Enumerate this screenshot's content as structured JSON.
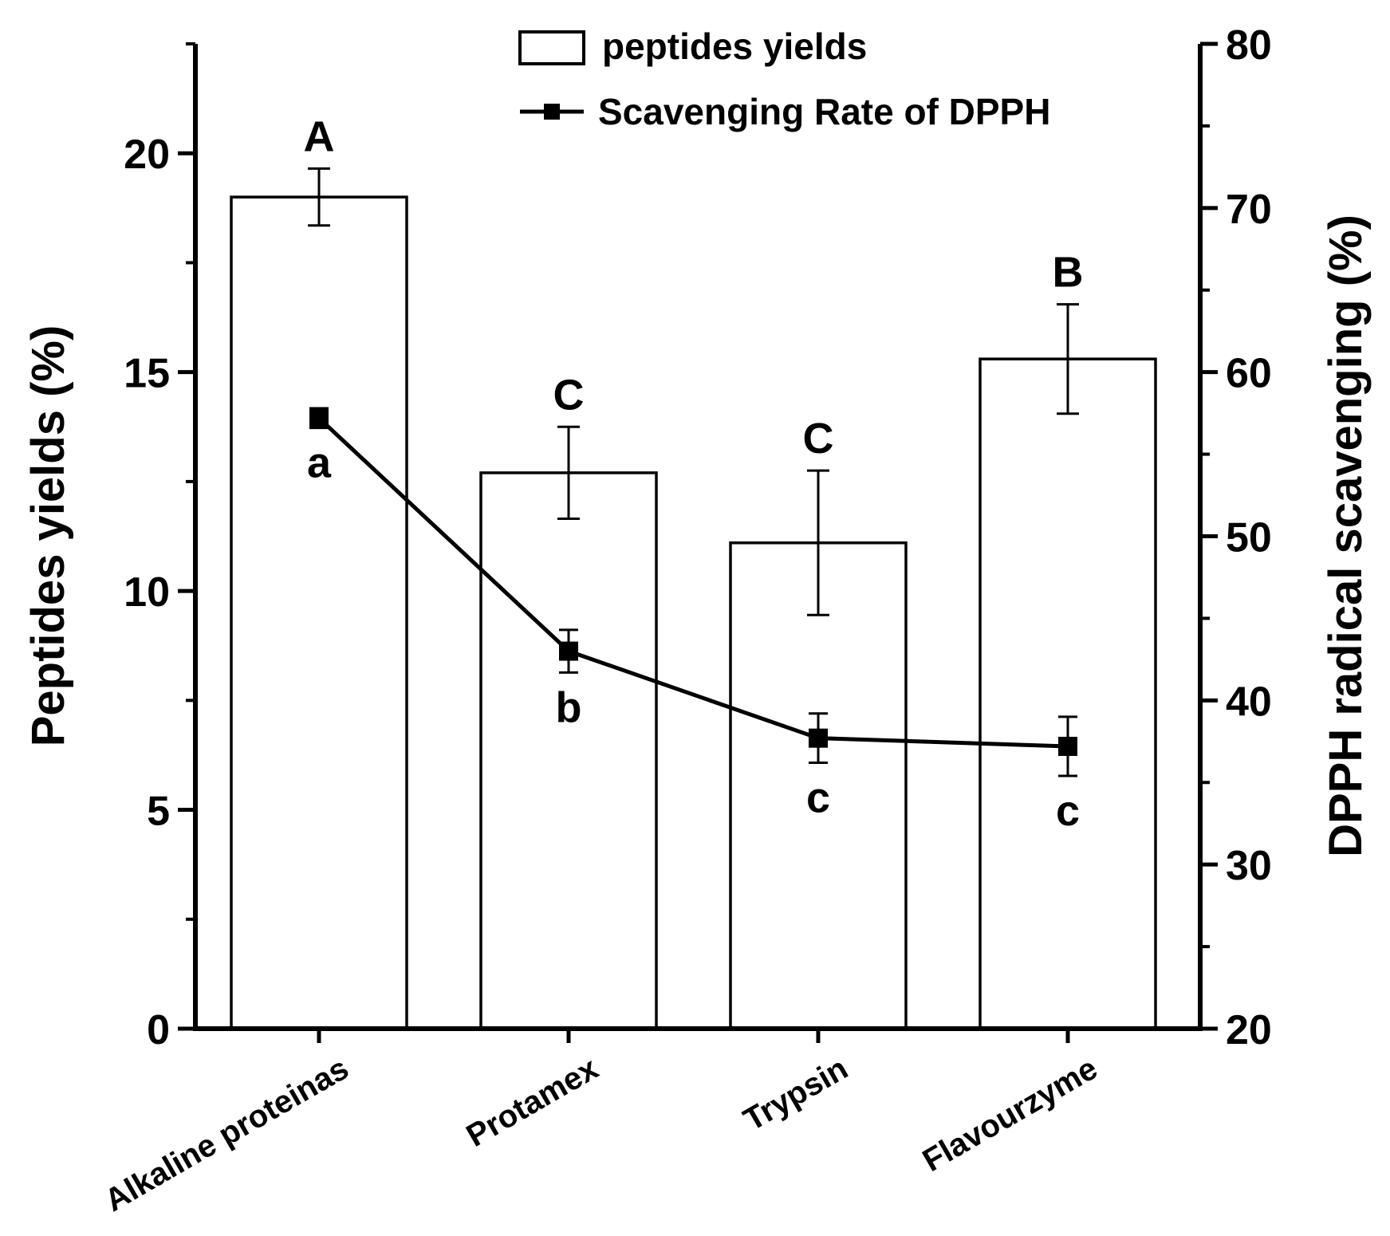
{
  "chart_data": {
    "type": "bar+line",
    "categories": [
      "Alkaline proteinas",
      "Protamex",
      "Trypsin",
      "Flavourzyme"
    ],
    "series": [
      {
        "name": "peptides yields",
        "type": "bar",
        "axis": "left",
        "values": [
          19.0,
          12.7,
          11.1,
          15.3
        ],
        "errors": [
          0.65,
          1.05,
          1.65,
          1.25
        ],
        "letters": [
          "A",
          "C",
          "C",
          "B"
        ]
      },
      {
        "name": "Scavenging Rate of DPPH",
        "type": "line",
        "axis": "right",
        "values": [
          57.2,
          43.0,
          37.7,
          37.2
        ],
        "errors": [
          0.6,
          1.3,
          1.5,
          1.8
        ],
        "letters": [
          "a",
          "b",
          "c",
          "c"
        ]
      }
    ],
    "ylabel_left": "Peptides yields (%)",
    "ylabel_right": "DPPH radical scavenging (%)",
    "ylim_left": [
      0,
      22.5
    ],
    "ylim_right": [
      20,
      80
    ],
    "yticks_left": [
      "0",
      "5",
      "10",
      "15",
      "20"
    ],
    "yticks_right": [
      "20",
      "30",
      "40",
      "50",
      "60",
      "70",
      "80"
    ],
    "legend": [
      "peptides yields",
      "Scavenging Rate of DPPH"
    ],
    "legend_position": "top-center",
    "colors": {
      "bar_fill": "#ffffff",
      "stroke": "#000000"
    }
  }
}
